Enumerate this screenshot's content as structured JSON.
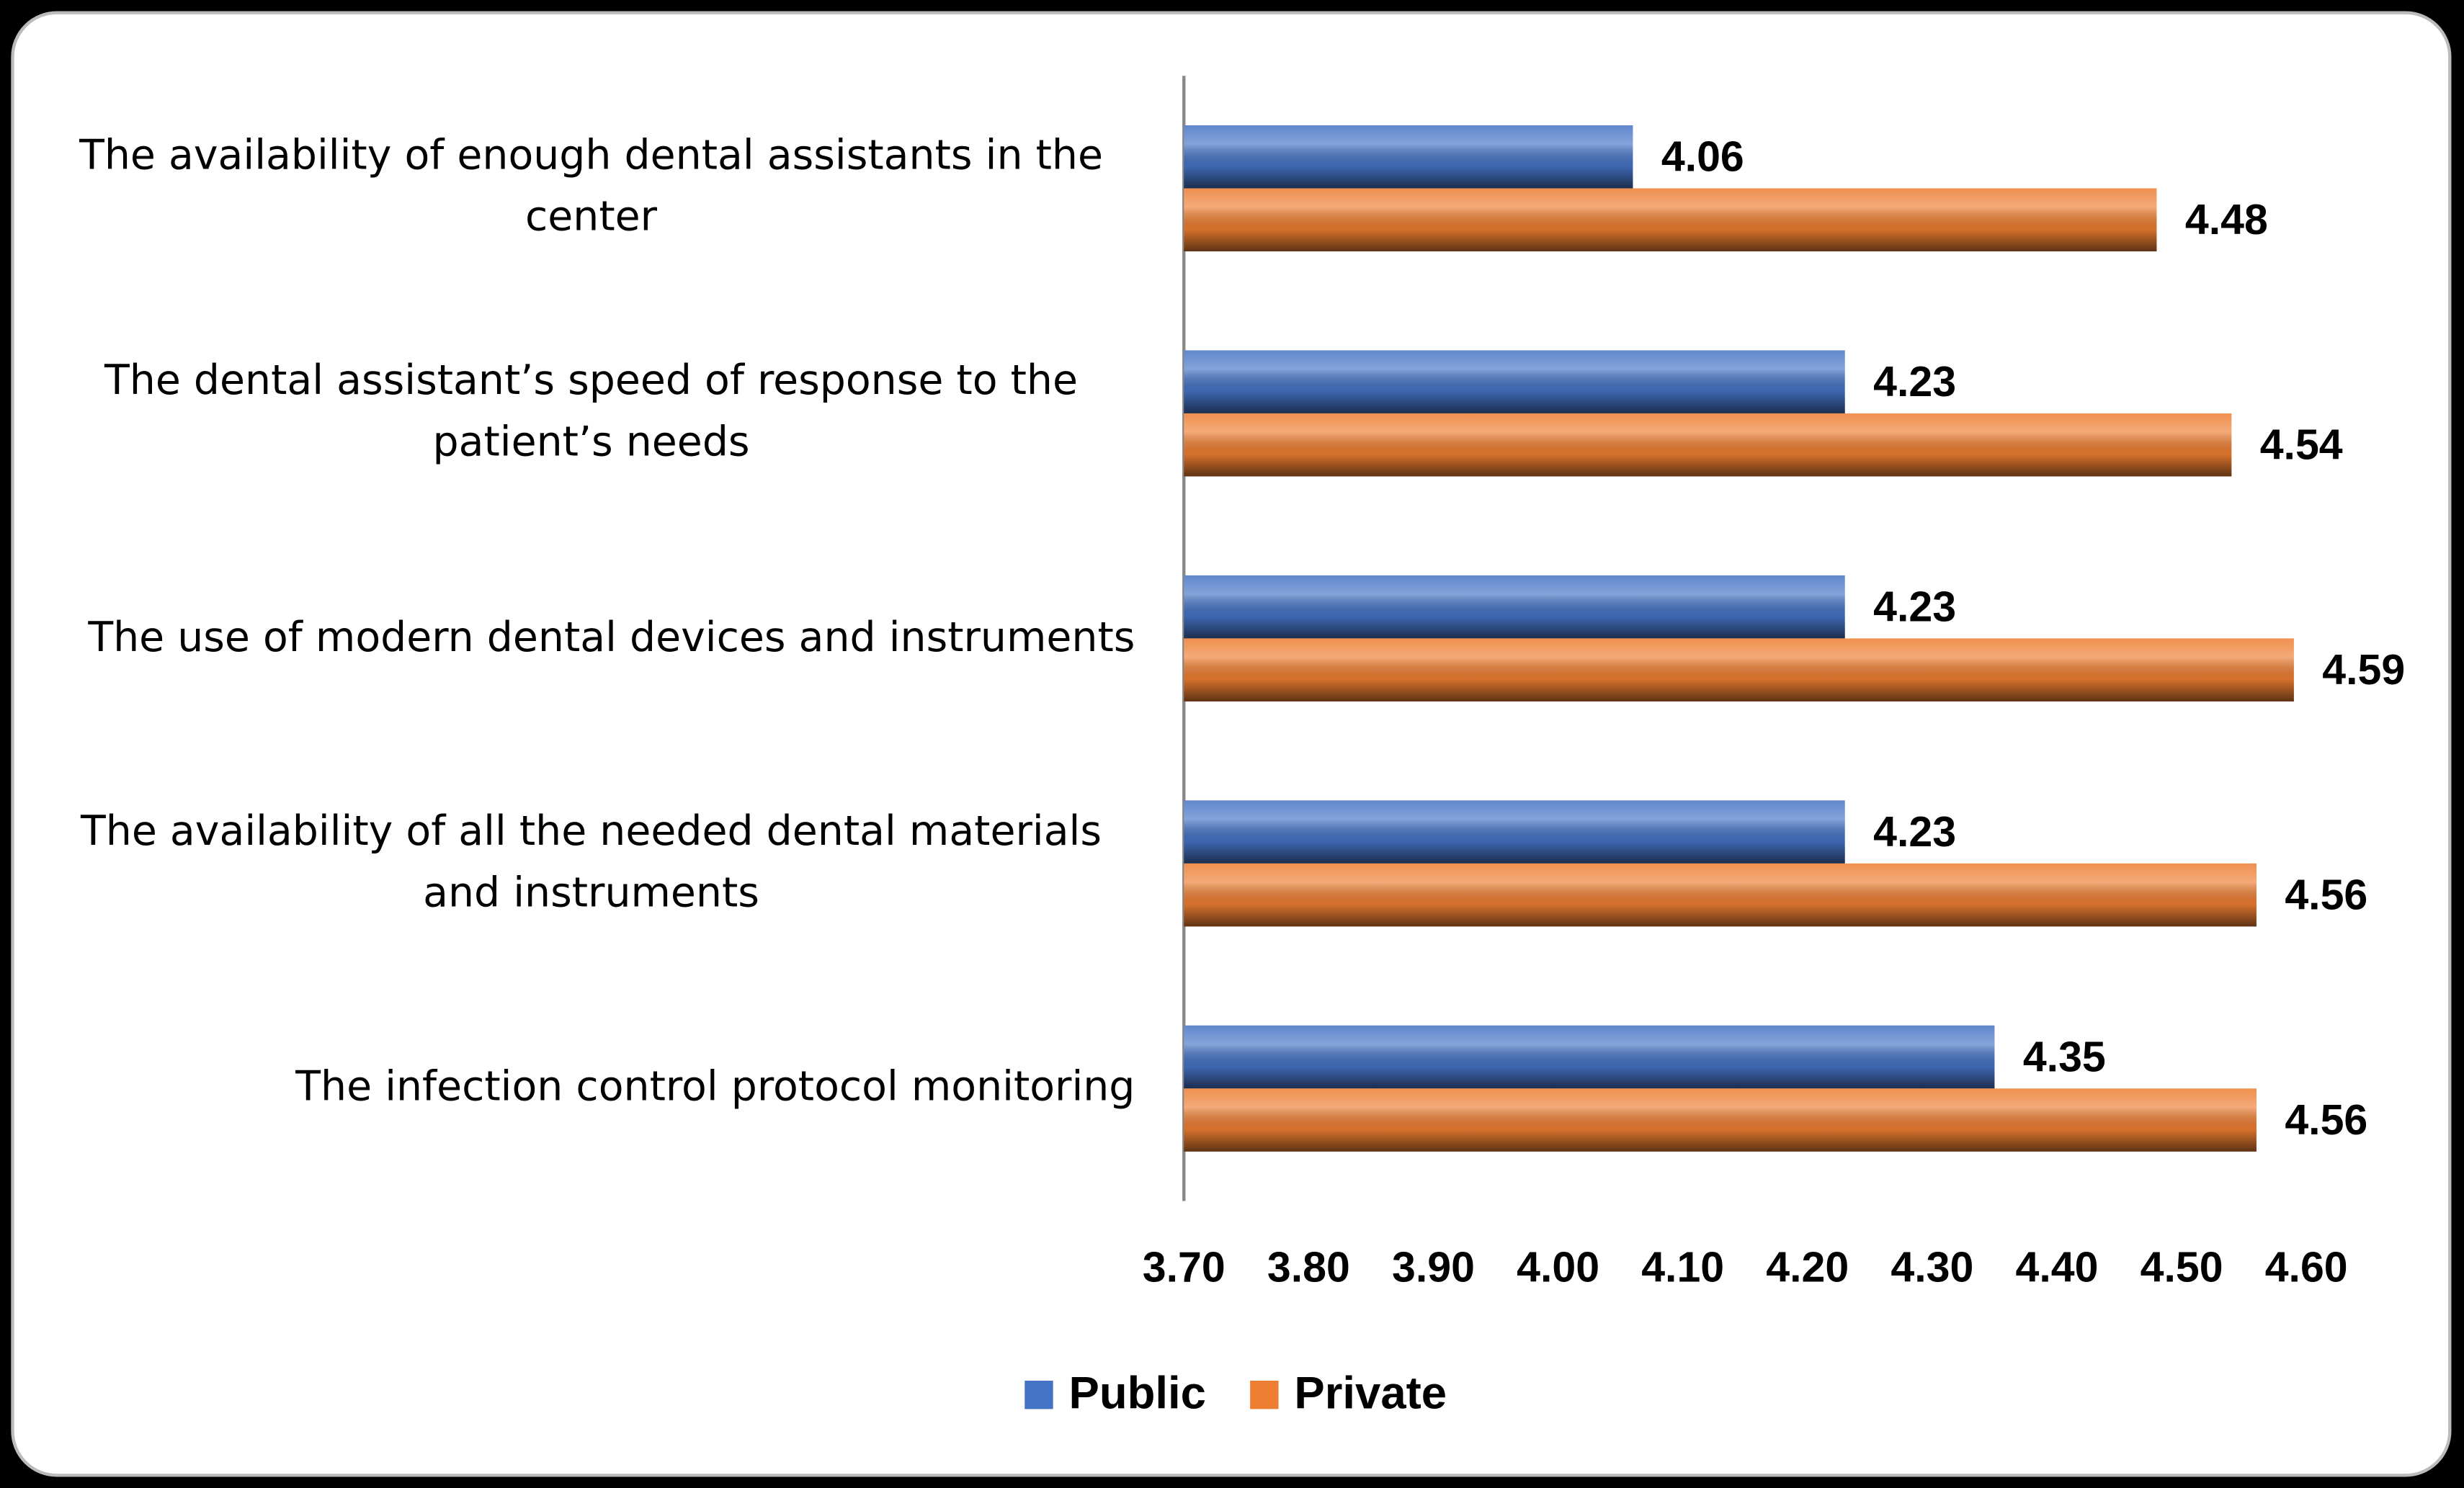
{
  "chart_data": {
    "type": "bar",
    "orientation": "horizontal",
    "categories": [
      "The availability of enough dental assistants in the center",
      "The dental assistant’s speed of response to the patient’s needs",
      "The use of modern dental devices and instruments",
      "The availability of all the needed dental materials and instruments",
      "The infection control protocol monitoring"
    ],
    "series": [
      {
        "name": "Public",
        "color": "#4472c4",
        "values": [
          4.06,
          4.23,
          4.23,
          4.23,
          4.35
        ]
      },
      {
        "name": "Private",
        "color": "#ed7d31",
        "values": [
          4.48,
          4.54,
          4.59,
          4.56,
          4.56
        ]
      }
    ],
    "xlim": [
      3.7,
      4.6
    ],
    "xticks": [
      {
        "value": 3.7,
        "label": "3.70"
      },
      {
        "value": 3.8,
        "label": "3.80"
      },
      {
        "value": 3.9,
        "label": "3.90"
      },
      {
        "value": 4.0,
        "label": "4.00"
      },
      {
        "value": 4.1,
        "label": "4.10"
      },
      {
        "value": 4.2,
        "label": "4.20"
      },
      {
        "value": 4.3,
        "label": "4.30"
      },
      {
        "value": 4.4,
        "label": "4.40"
      },
      {
        "value": 4.5,
        "label": "4.50"
      },
      {
        "value": 4.6,
        "label": "4.60"
      }
    ],
    "grid": false,
    "legend": "bottom"
  }
}
